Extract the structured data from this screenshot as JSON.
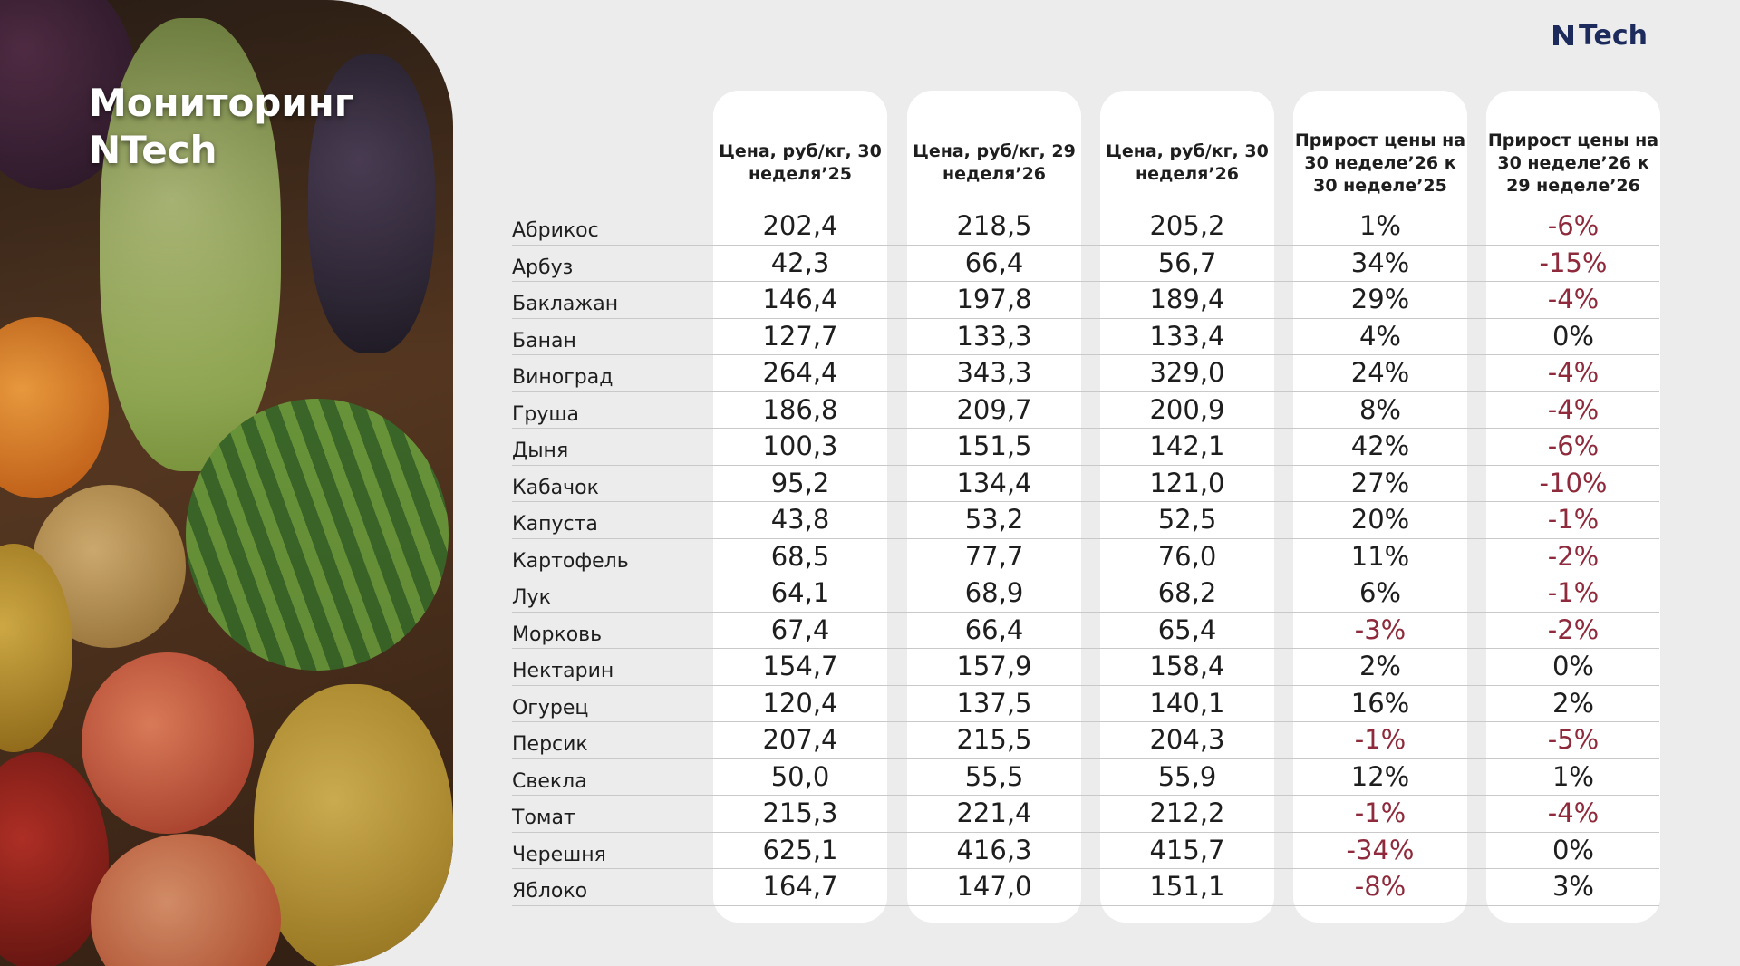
{
  "title": "Мониторинг NTech",
  "logo": {
    "text": "Tech",
    "icon": "n-logo-icon",
    "color": "#1c2a5c"
  },
  "colors": {
    "negative": "#8e2a3b",
    "card": "#ffffff",
    "background": "#ececec"
  },
  "columns": [
    "Цена, руб/кг, 30 неделя’25",
    "Цена, руб/кг, 29 неделя’26",
    "Цена, руб/кг, 30 неделя’26",
    "Прирост цены на 30 неделе’26 к 30 неделе’25",
    "Прирост цены на 30 неделе’26 к 29 неделе’26"
  ],
  "rows": [
    {
      "name": "Абрикос",
      "values": [
        "202,4",
        "218,5",
        "205,2",
        "1%",
        "-6%"
      ]
    },
    {
      "name": "Арбуз",
      "values": [
        "42,3",
        "66,4",
        "56,7",
        "34%",
        "-15%"
      ]
    },
    {
      "name": "Баклажан",
      "values": [
        "146,4",
        "197,8",
        "189,4",
        "29%",
        "-4%"
      ]
    },
    {
      "name": "Банан",
      "values": [
        "127,7",
        "133,3",
        "133,4",
        "4%",
        "0%"
      ]
    },
    {
      "name": "Виноград",
      "values": [
        "264,4",
        "343,3",
        "329,0",
        "24%",
        "-4%"
      ]
    },
    {
      "name": "Груша",
      "values": [
        "186,8",
        "209,7",
        "200,9",
        "8%",
        "-4%"
      ]
    },
    {
      "name": "Дыня",
      "values": [
        "100,3",
        "151,5",
        "142,1",
        "42%",
        "-6%"
      ]
    },
    {
      "name": "Кабачок",
      "values": [
        "95,2",
        "134,4",
        "121,0",
        "27%",
        "-10%"
      ]
    },
    {
      "name": "Капуста",
      "values": [
        "43,8",
        "53,2",
        "52,5",
        "20%",
        "-1%"
      ]
    },
    {
      "name": "Картофель",
      "values": [
        "68,5",
        "77,7",
        "76,0",
        "11%",
        "-2%"
      ]
    },
    {
      "name": "Лук",
      "values": [
        "64,1",
        "68,9",
        "68,2",
        "6%",
        "-1%"
      ]
    },
    {
      "name": "Морковь",
      "values": [
        "67,4",
        "66,4",
        "65,4",
        "-3%",
        "-2%"
      ]
    },
    {
      "name": "Нектарин",
      "values": [
        "154,7",
        "157,9",
        "158,4",
        "2%",
        "0%"
      ]
    },
    {
      "name": "Огурец",
      "values": [
        "120,4",
        "137,5",
        "140,1",
        "16%",
        "2%"
      ]
    },
    {
      "name": "Персик",
      "values": [
        "207,4",
        "215,5",
        "204,3",
        "-1%",
        "-5%"
      ]
    },
    {
      "name": "Свекла",
      "values": [
        "50,0",
        "55,5",
        "55,9",
        "12%",
        "1%"
      ]
    },
    {
      "name": "Томат",
      "values": [
        "215,3",
        "221,4",
        "212,2",
        "-1%",
        "-4%"
      ]
    },
    {
      "name": "Черешня",
      "values": [
        "625,1",
        "416,3",
        "415,7",
        "-34%",
        "0%"
      ]
    },
    {
      "name": "Яблоко",
      "values": [
        "164,7",
        "147,0",
        "151,1",
        "-8%",
        "3%"
      ]
    }
  ]
}
